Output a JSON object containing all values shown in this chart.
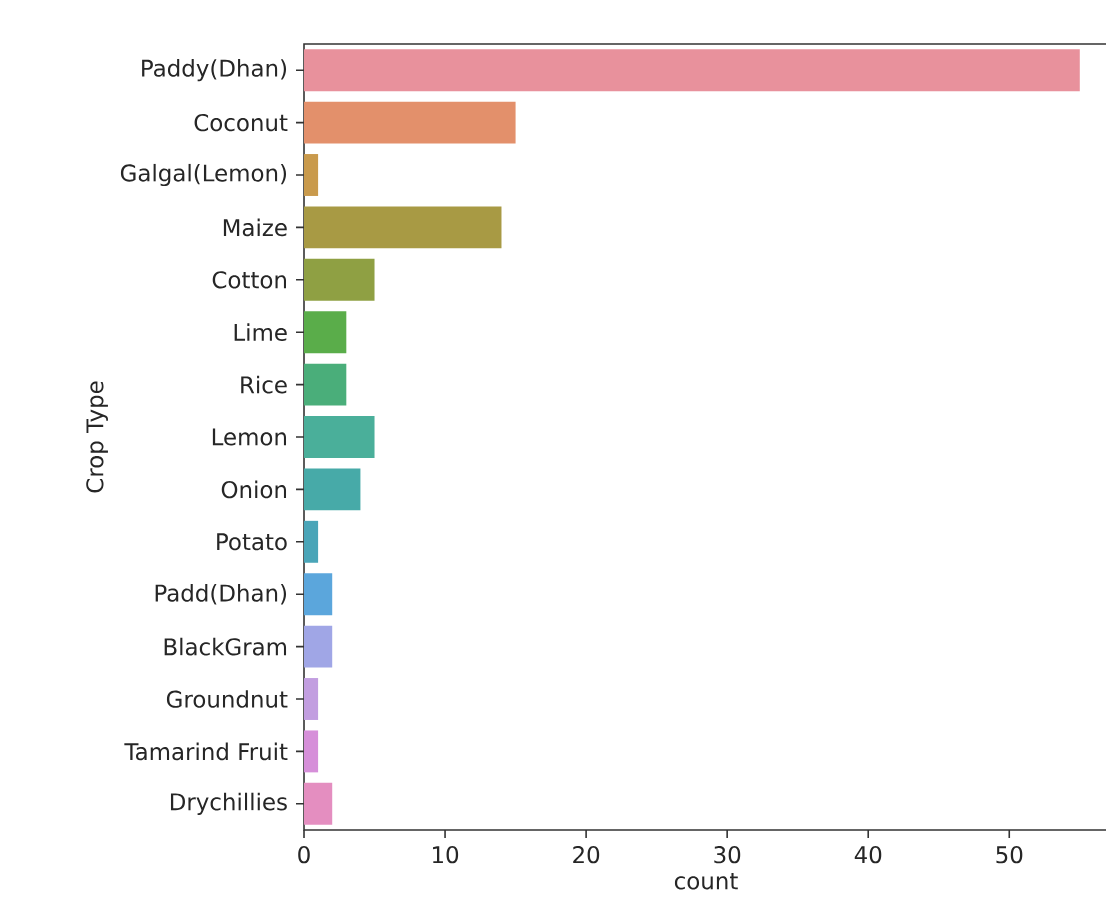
{
  "chart_data": {
    "type": "bar",
    "orientation": "horizontal",
    "xlabel": "count",
    "ylabel": "Crop Type",
    "categories": [
      "Paddy(Dhan)",
      "Coconut",
      "Galgal(Lemon)",
      "Maize",
      "Cotton",
      "Lime",
      "Rice",
      "Lemon",
      "Onion",
      "Potato",
      "Padd(Dhan)",
      "BlackGram",
      "Groundnut",
      "Tamarind Fruit",
      "Drychillies"
    ],
    "values": [
      55,
      15,
      1,
      14,
      5,
      3,
      3,
      5,
      4,
      1,
      2,
      2,
      1,
      1,
      2
    ],
    "colors": [
      "#e8919c",
      "#e3906b",
      "#c99a4c",
      "#a89a44",
      "#8fa043",
      "#5aad4a",
      "#4aae7a",
      "#4aaf9a",
      "#47aaa8",
      "#4aa5b8",
      "#5ba6dc",
      "#a0a6e6",
      "#c29ee0",
      "#d68fd9",
      "#e48ec0"
    ],
    "xlim": [
      0,
      57
    ],
    "xticks": [
      0,
      10,
      20,
      30,
      40,
      50
    ]
  }
}
